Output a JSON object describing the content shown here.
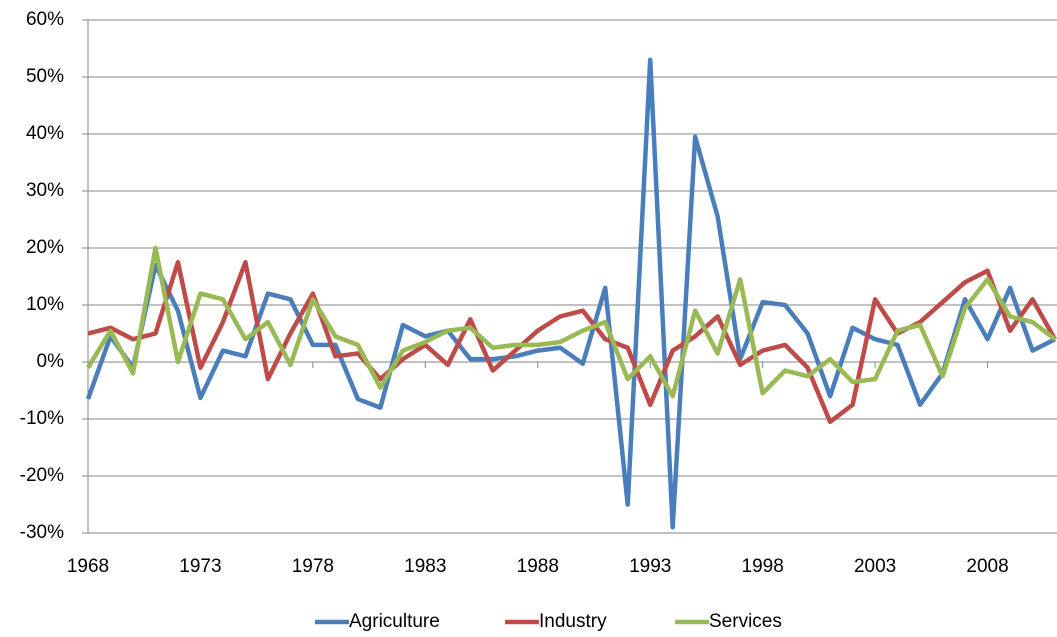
{
  "chart_data": {
    "type": "line",
    "x": [
      1968,
      1969,
      1970,
      1971,
      1972,
      1973,
      1974,
      1975,
      1976,
      1977,
      1978,
      1979,
      1980,
      1981,
      1982,
      1983,
      1984,
      1985,
      1986,
      1987,
      1988,
      1989,
      1990,
      1991,
      1992,
      1993,
      1994,
      1995,
      1996,
      1997,
      1998,
      1999,
      2000,
      2001,
      2002,
      2003,
      2004,
      2005,
      2006,
      2007,
      2008,
      2009,
      2010,
      2011
    ],
    "series": [
      {
        "name": "Agriculture",
        "color": "#4a7ebb",
        "values": [
          -6.5,
          4.5,
          -1,
          17,
          9,
          -6.3,
          2,
          1,
          12,
          11,
          3,
          3,
          -6.5,
          -8,
          6.5,
          4.5,
          5.5,
          0.5,
          0.5,
          1,
          2,
          2.5,
          -0.3,
          13,
          -25,
          53,
          -29,
          39.5,
          25.5,
          0.5,
          10.5,
          10,
          5,
          -6,
          6,
          4,
          3,
          -7.5,
          -2,
          11,
          4,
          13,
          2,
          4
        ]
      },
      {
        "name": "Industry",
        "color": "#be4b48",
        "values": [
          5,
          6,
          4,
          5,
          17.5,
          -1,
          7,
          17.5,
          -3,
          5,
          12,
          1,
          1.5,
          -3,
          0.5,
          3,
          -0.5,
          7.5,
          -1.5,
          2,
          5.5,
          8,
          9,
          4,
          2.5,
          -7.5,
          2,
          4.5,
          8,
          -0.5,
          2,
          3,
          -1,
          -10.5,
          -7.5,
          11,
          5,
          7,
          10.5,
          14,
          16,
          5.5,
          11,
          4
        ]
      },
      {
        "name": "Services",
        "color": "#98b954",
        "values": [
          -1,
          5.5,
          -2,
          20,
          0,
          12,
          11,
          4,
          7,
          -0.5,
          11,
          4.5,
          3,
          -4.5,
          2,
          3.5,
          5.5,
          6,
          2.5,
          3,
          3,
          3.5,
          5.5,
          7,
          -3,
          1,
          -6,
          9,
          1.5,
          14.5,
          -5.5,
          -1.5,
          -2.5,
          0.5,
          -3.5,
          -3,
          5.5,
          6.5,
          -2.5,
          9.5,
          14.5,
          8,
          7,
          4
        ]
      }
    ],
    "xlim": [
      1968,
      2011
    ],
    "xticks": [
      1968,
      1973,
      1978,
      1983,
      1988,
      1993,
      1998,
      2003,
      2008
    ],
    "ylim": [
      -30,
      60
    ],
    "yticks": [
      {
        "value": -30,
        "label": "-30%"
      },
      {
        "value": -20,
        "label": "-20%"
      },
      {
        "value": -10,
        "label": "-10%"
      },
      {
        "value": 0,
        "label": "0%"
      },
      {
        "value": 10,
        "label": "10%"
      },
      {
        "value": 20,
        "label": "20%"
      },
      {
        "value": 30,
        "label": "30%"
      },
      {
        "value": 40,
        "label": "40%"
      },
      {
        "value": 50,
        "label": "50%"
      },
      {
        "value": 60,
        "label": "60%"
      }
    ],
    "grid": true,
    "legend": "bottom"
  }
}
